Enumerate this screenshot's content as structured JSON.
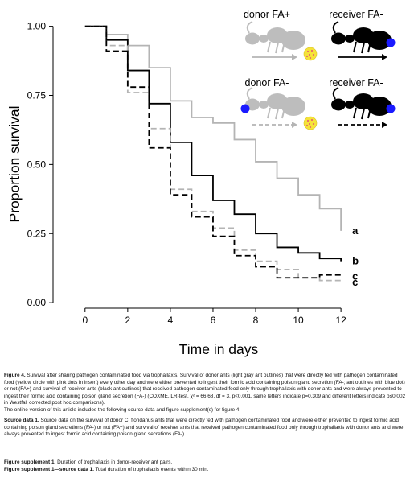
{
  "chart_data": {
    "type": "line",
    "step": true,
    "xlabel": "Time in days",
    "ylabel": "Proportion survival",
    "xlim": [
      -1.5,
      12.9
    ],
    "ylim": [
      -0.02,
      1.06
    ],
    "xticks": [
      "0",
      "2",
      "4",
      "6",
      "8",
      "10",
      "12"
    ],
    "yticks": [
      "0.00",
      "0.25",
      "0.50",
      "0.75",
      "1.00"
    ],
    "series": [
      {
        "color": "#b4b4b4",
        "dash": false,
        "end_label": "a",
        "x": [
          0,
          1,
          2,
          3,
          4,
          5,
          6,
          7,
          8,
          9,
          10,
          11,
          12
        ],
        "y": [
          1.0,
          0.97,
          0.93,
          0.85,
          0.73,
          0.67,
          0.65,
          0.59,
          0.51,
          0.45,
          0.39,
          0.34,
          0.26
        ]
      },
      {
        "color": "#000000",
        "dash": false,
        "end_label": "b",
        "x": [
          0,
          1,
          2,
          3,
          4,
          5,
          6,
          7,
          8,
          9,
          10,
          11,
          12
        ],
        "y": [
          1.0,
          0.95,
          0.84,
          0.72,
          0.58,
          0.46,
          0.37,
          0.32,
          0.25,
          0.2,
          0.18,
          0.16,
          0.15
        ]
      },
      {
        "color": "#b4b4b4",
        "dash": true,
        "end_label": "c",
        "x": [
          0,
          1,
          2,
          3,
          4,
          5,
          6,
          7,
          8,
          9,
          10,
          11,
          12
        ],
        "y": [
          1.0,
          0.93,
          0.76,
          0.63,
          0.41,
          0.33,
          0.27,
          0.19,
          0.15,
          0.12,
          0.09,
          0.08,
          0.08
        ]
      },
      {
        "color": "#000000",
        "dash": true,
        "end_label": "c",
        "x": [
          0,
          1,
          2,
          3,
          4,
          5,
          6,
          7,
          8,
          9,
          10,
          11,
          12
        ],
        "y": [
          1.0,
          0.91,
          0.78,
          0.56,
          0.39,
          0.31,
          0.24,
          0.17,
          0.13,
          0.09,
          0.09,
          0.1,
          0.09
        ]
      }
    ],
    "legend": {
      "placement": "top-right",
      "entries": [
        {
          "label": "donor FA+",
          "ant_color": "#bdbdbd",
          "dot": false,
          "arrow_color": "#b4b4b4",
          "arrow_dashed": false,
          "food": true
        },
        {
          "label": "receiver FA-",
          "ant_color": "#000000",
          "dot": true,
          "arrow_color": "#000000",
          "arrow_dashed": false,
          "food": false
        },
        {
          "label": "donor FA-",
          "ant_color": "#bdbdbd",
          "dot": true,
          "arrow_color": "#b4b4b4",
          "arrow_dashed": true,
          "food": true
        },
        {
          "label": "receiver FA-",
          "ant_color": "#000000",
          "dot": true,
          "arrow_color": "#000000",
          "arrow_dashed": true,
          "food": false
        }
      ]
    },
    "colors": {
      "pathogen_food": "#f5e33a",
      "pathogen_dots": "#e86a6a",
      "fa_dot": "#1a1aff"
    }
  },
  "caption": {
    "main_label": "Figure 4.",
    "main_title": "Survival after sharing pathogen contaminated food via trophallaxis.",
    "main_text": "Survival of donor ants (light gray ant outlines) that were directly fed with pathogen contaminated food (yellow circle with pink dots in insert) every other day and were either prevented to ingest their formic acid containing poison gland secretion (FA-; ant outlines with blue dot) or not (FA+) and survival of receiver ants (black ant outlines) that received pathogen contaminated food only through trophallaxis with donor ants and were always prevented to ingest their formic acid containing poison gland secretion (FA-) (COXME, LR-test, χ² = 66.68, df = 3, p<0.001, same letters indicate p=0.309 and different letters indicate p≤0.002 in Westfall corrected post hoc comparisons).",
    "online": "The online version of this article includes the following source data and figure supplement(s) for figure 4:",
    "sd1_label": "Source data 1.",
    "sd1_text": "Source data on the survival of donor C. floridanus ants that were directly fed with pathogen contaminated food and were either prevented to ingest formic acid containing poison gland secretions (FA-) or not (FA+) and survival of receiver ants that received pathogen contaminated food only through trophallaxis with donor ants and were always prevented to ingest formic acid containing poison gland secretions (FA-).",
    "fs1_label": "Figure supplement 1.",
    "fs1_text": "Duration of trophallaxis in donor-receiver ant pairs.",
    "fs1sd_label": "Figure supplement 1—source data 1.",
    "fs1sd_text": "Total duration of trophallaxis events within 30 min."
  }
}
